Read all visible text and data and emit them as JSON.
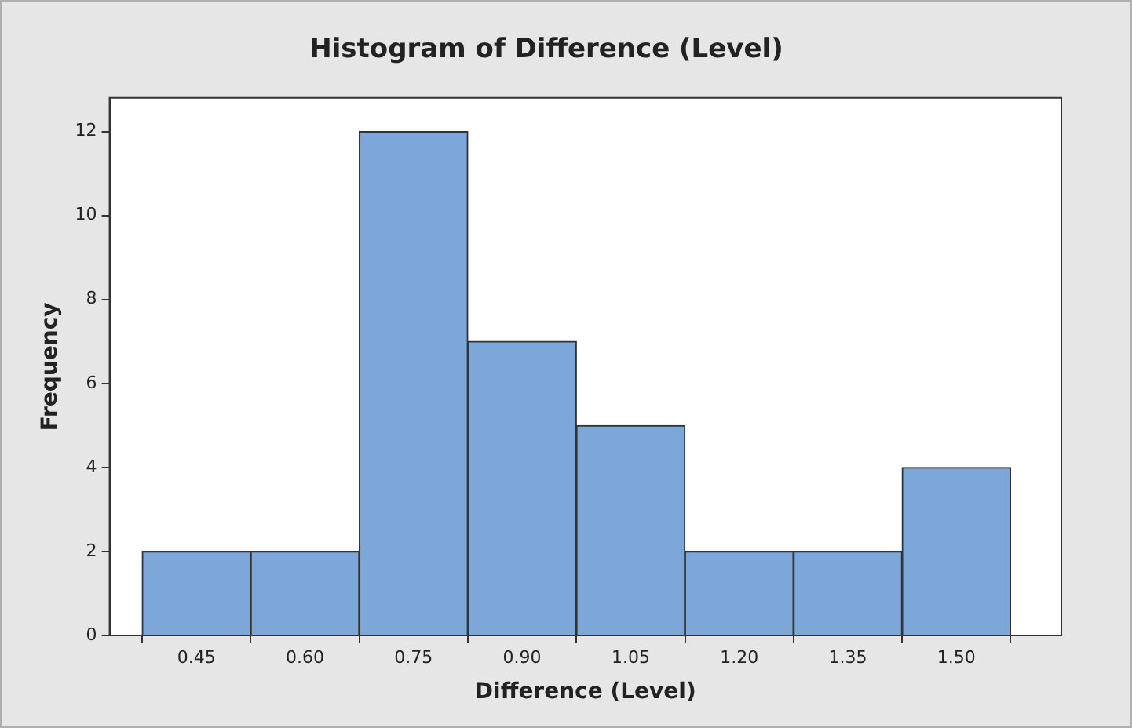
{
  "chart_data": {
    "type": "histogram",
    "title": "Histogram of Difference (Level)",
    "xlabel": "Difference (Level)",
    "ylabel": "Frequency",
    "bins": [
      0.375,
      0.525,
      0.675,
      0.825,
      0.975,
      1.125,
      1.275,
      1.425,
      1.575
    ],
    "values": [
      2,
      2,
      12,
      7,
      5,
      2,
      2,
      4
    ],
    "color": "#7da7d9",
    "xlim": [
      0.33,
      1.645
    ],
    "xticks": [
      0.45,
      {
        "value": 0.6,
        "label": "0.60"
      },
      0.75,
      {
        "value": 0.9,
        "label": "0.90"
      },
      1.05,
      {
        "value": 1.2,
        "label": "1.20"
      },
      1.35,
      {
        "value": 1.5,
        "label": "1.50"
      }
    ],
    "ylim": [
      0,
      12.8
    ],
    "yticks": [
      0,
      2,
      4,
      6,
      8,
      10,
      12
    ],
    "grid": false,
    "legend": false
  }
}
